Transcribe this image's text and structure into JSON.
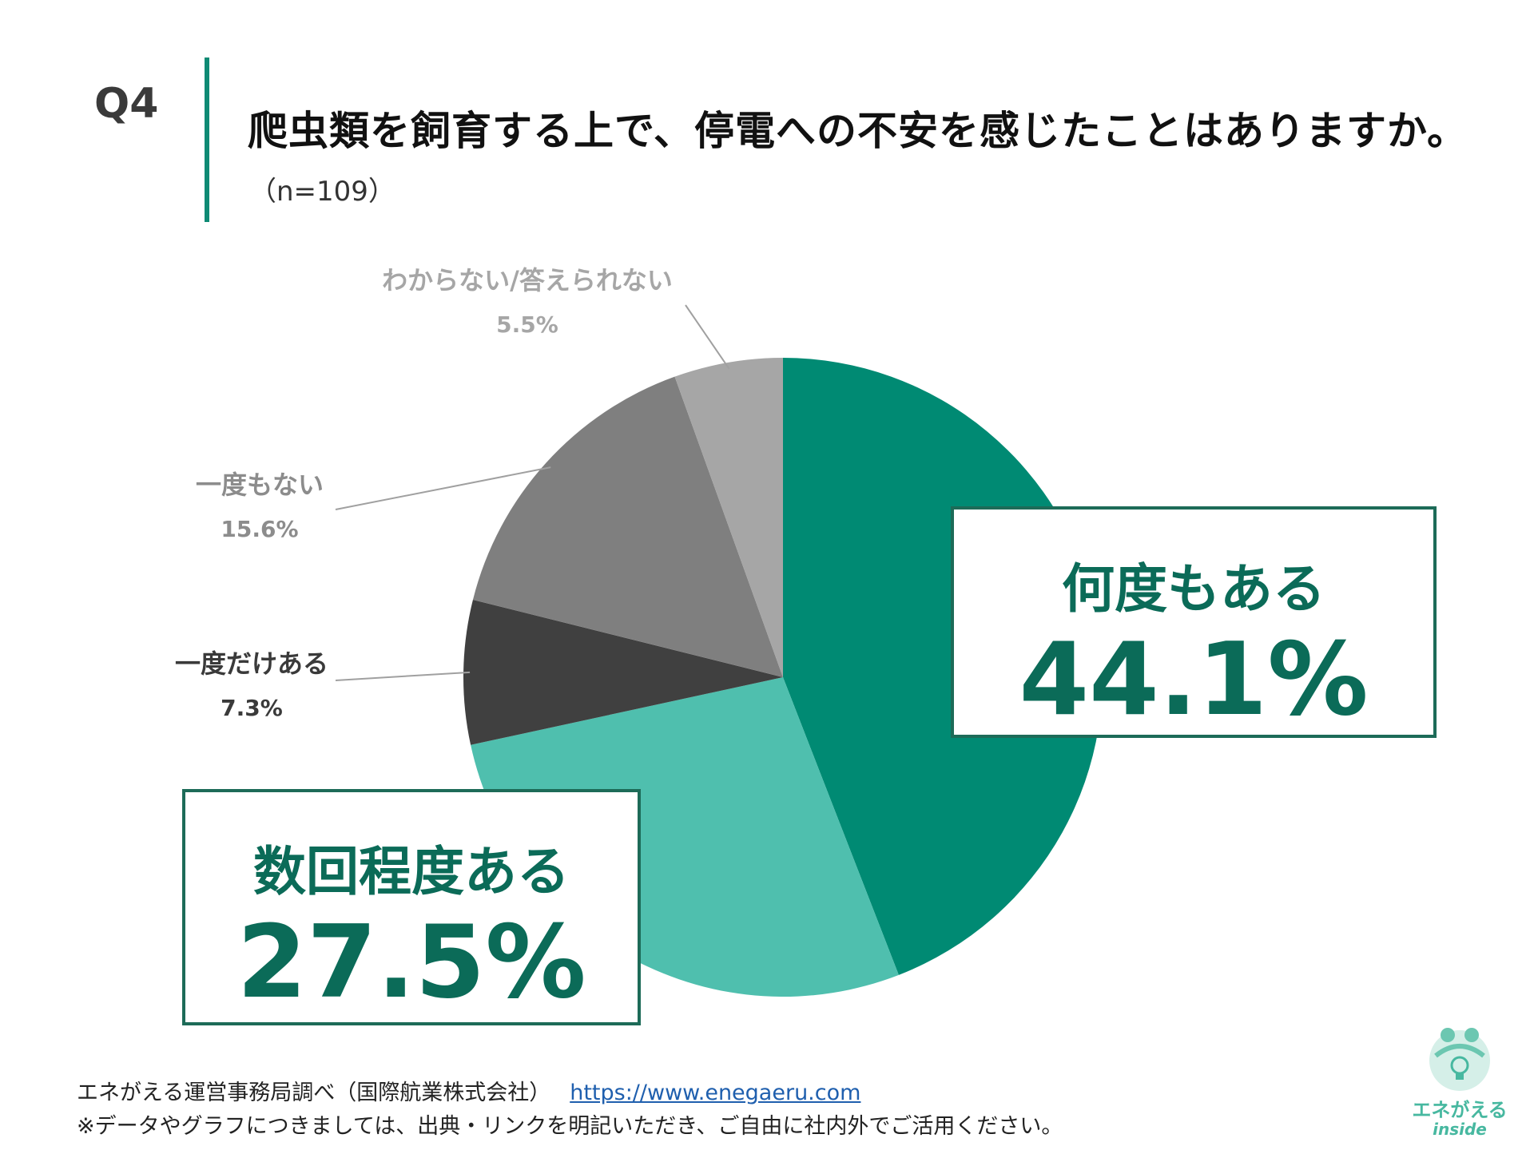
{
  "question": {
    "number": "Q4",
    "title": "爬虫類を飼育する上で、停電への不安を感じたことはありますか。",
    "sample": "（n=109）"
  },
  "colors": {
    "accent": "#0f8a74",
    "callout_text": "#0b6b58"
  },
  "chart_data": {
    "type": "pie",
    "start_angle_deg": 0,
    "direction": "clockwise",
    "slices": [
      {
        "label": "何度もある",
        "value": 44.1,
        "display": "44.1%",
        "color": "#008a73"
      },
      {
        "label": "数回程度ある",
        "value": 27.5,
        "display": "27.5%",
        "color": "#4fbfae"
      },
      {
        "label": "一度だけある",
        "value": 7.3,
        "display": "7.3%",
        "color": "#404040"
      },
      {
        "label": "一度もない",
        "value": 15.6,
        "display": "15.6%",
        "color": "#7f7f7f"
      },
      {
        "label": "わからない/答えられない",
        "value": 5.5,
        "display": "5.5%",
        "color": "#a6a6a6"
      }
    ],
    "outside_label_colors": [
      "",
      "",
      "#3a3a3a",
      "#8c8c8c",
      "#a6a6a6"
    ]
  },
  "footer": {
    "source": "エネがえる運営事務局調べ（国際航業株式会社）",
    "url": "https://www.enegaeru.com",
    "note": "※データやグラフにつきましては、出典・リンクを明記いただき、ご自由に社内外でご活用ください。"
  },
  "logo": {
    "text": "エネがえる",
    "sub": "inside",
    "icon": "lightbulb-frog-icon",
    "color": "#47b8a0"
  }
}
